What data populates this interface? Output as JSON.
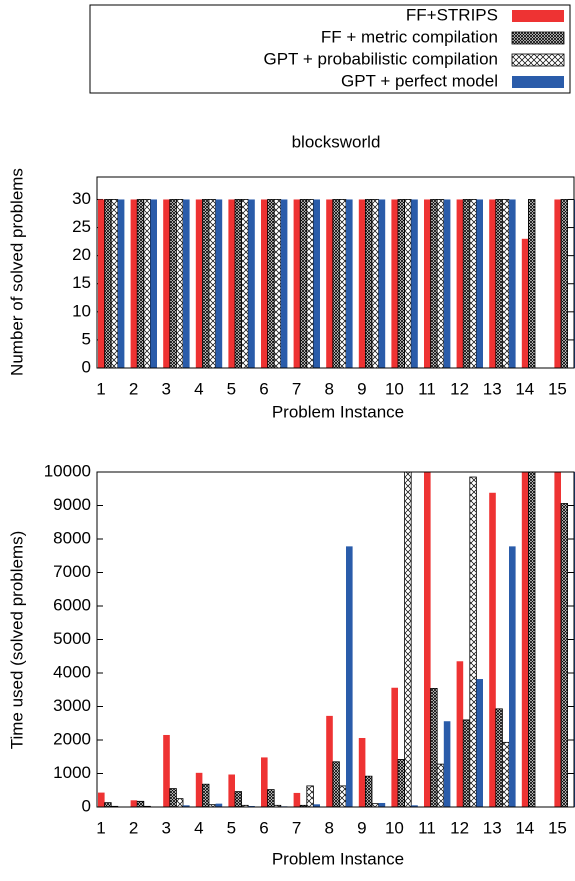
{
  "chart_data": [
    {
      "type": "bar",
      "title": "blocksworld",
      "xlabel": "Problem Instance",
      "ylabel": "Number of solved problems",
      "categories": [
        "1",
        "2",
        "3",
        "4",
        "5",
        "6",
        "7",
        "8",
        "9",
        "10",
        "11",
        "12",
        "13",
        "14",
        "15"
      ],
      "ylim": [
        0,
        34
      ],
      "yticks": [
        0,
        5,
        10,
        15,
        20,
        25,
        30
      ],
      "legend": "top",
      "series": [
        {
          "name": "FF+STRIPS",
          "color": "#ee3333",
          "pattern": "solid",
          "values": [
            30,
            30,
            30,
            30,
            30,
            30,
            30,
            30,
            30,
            30,
            30,
            30,
            30,
            23,
            30
          ]
        },
        {
          "name": "FF + metric compilation",
          "color": "#000000",
          "pattern": "checker",
          "values": [
            30,
            30,
            30,
            30,
            30,
            30,
            30,
            30,
            30,
            30,
            30,
            30,
            30,
            30,
            30
          ]
        },
        {
          "name": "GPT + probabilistic compilation",
          "color": "#000000",
          "pattern": "cross",
          "values": [
            30,
            30,
            30,
            30,
            30,
            30,
            30,
            30,
            30,
            30,
            30,
            30,
            30,
            null,
            null
          ]
        },
        {
          "name": "GPT + perfect model",
          "color": "#2a5caa",
          "pattern": "solid",
          "values": [
            30,
            30,
            30,
            30,
            30,
            30,
            30,
            30,
            30,
            30,
            30,
            30,
            30,
            null,
            30
          ]
        }
      ]
    },
    {
      "type": "bar",
      "xlabel": "Problem Instance",
      "ylabel": "Time used (solved problems)",
      "categories": [
        "1",
        "2",
        "3",
        "4",
        "5",
        "6",
        "7",
        "8",
        "9",
        "10",
        "11",
        "12",
        "13",
        "14",
        "15"
      ],
      "ylim": [
        0,
        10000
      ],
      "yticks": [
        0,
        1000,
        2000,
        3000,
        4000,
        5000,
        6000,
        7000,
        8000,
        9000,
        10000
      ],
      "series": [
        {
          "color": "#ee3333",
          "pattern": "solid",
          "values": [
            430,
            200,
            2150,
            1020,
            970,
            1480,
            420,
            2720,
            2060,
            3560,
            10000,
            4350,
            9380,
            10000,
            10000
          ]
        },
        {
          "color": "#000000",
          "pattern": "checker",
          "values": [
            130,
            170,
            550,
            680,
            460,
            520,
            50,
            1350,
            920,
            1420,
            3540,
            2600,
            2930,
            10000,
            9060
          ]
        },
        {
          "color": "#000000",
          "pattern": "cross",
          "values": [
            20,
            20,
            250,
            70,
            50,
            50,
            630,
            630,
            100,
            10000,
            1280,
            9850,
            1930,
            null,
            null
          ]
        },
        {
          "color": "#2a5caa",
          "pattern": "solid",
          "values": [
            10,
            10,
            50,
            100,
            30,
            20,
            80,
            7780,
            120,
            50,
            2560,
            3820,
            7780,
            null,
            10000
          ]
        }
      ]
    }
  ]
}
